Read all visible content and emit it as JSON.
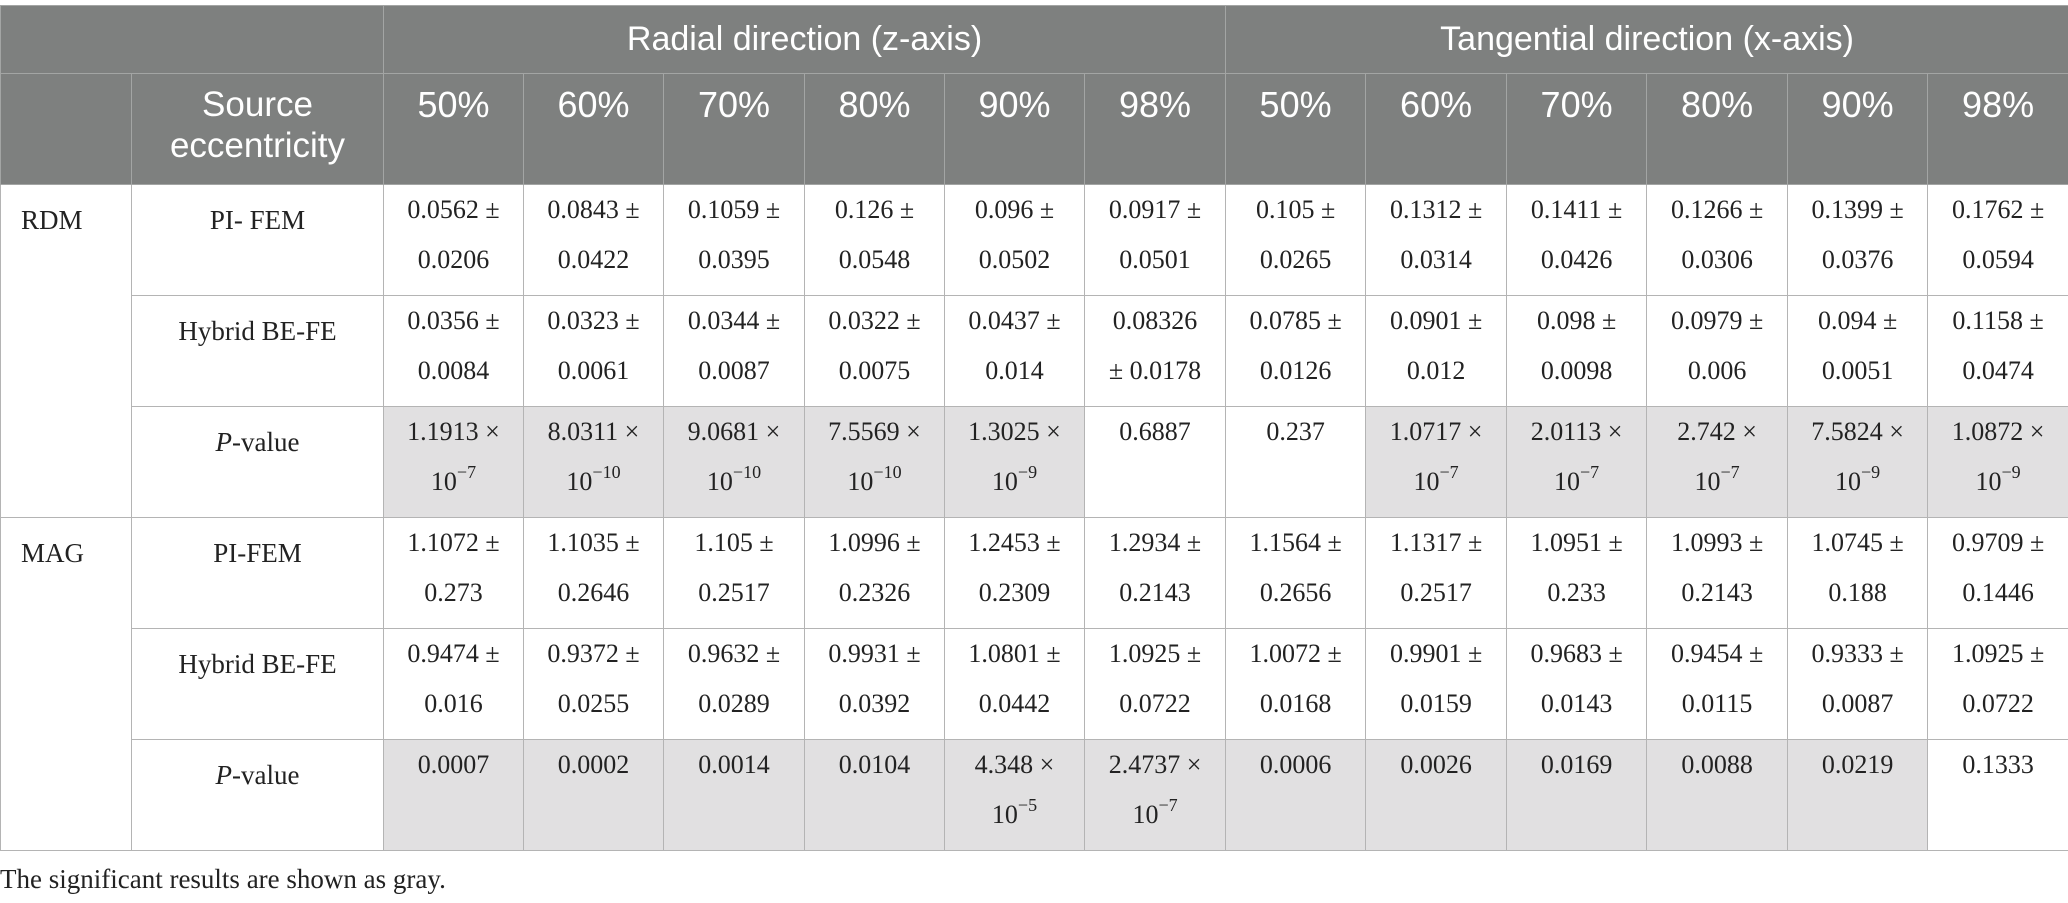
{
  "header": {
    "radial_label": "Radial direction (z-axis)",
    "tangential_label": "Tangential direction (x-axis)",
    "source_eccentricity_line1": "Source",
    "source_eccentricity_line2": "eccentricity",
    "percentages": [
      "50%",
      "60%",
      "70%",
      "80%",
      "90%",
      "98%",
      "50%",
      "60%",
      "70%",
      "80%",
      "90%",
      "98%"
    ]
  },
  "groups": [
    {
      "name": "RDM",
      "rows": [
        {
          "method": "PI- FEM",
          "italic": false,
          "cells": [
            {
              "line1": "0.0562 ±",
              "line2": "0.0206",
              "sig": false
            },
            {
              "line1": "0.0843 ±",
              "line2": "0.0422",
              "sig": false
            },
            {
              "line1": "0.1059 ±",
              "line2": "0.0395",
              "sig": false
            },
            {
              "line1": "0.126 ±",
              "line2": "0.0548",
              "sig": false
            },
            {
              "line1": "0.096 ±",
              "line2": "0.0502",
              "sig": false
            },
            {
              "line1": "0.0917 ±",
              "line2": "0.0501",
              "sig": false
            },
            {
              "line1": "0.105 ±",
              "line2": "0.0265",
              "sig": false
            },
            {
              "line1": "0.1312 ±",
              "line2": "0.0314",
              "sig": false
            },
            {
              "line1": "0.1411 ±",
              "line2": "0.0426",
              "sig": false
            },
            {
              "line1": "0.1266 ±",
              "line2": "0.0306",
              "sig": false
            },
            {
              "line1": "0.1399 ±",
              "line2": "0.0376",
              "sig": false
            },
            {
              "line1": "0.1762 ±",
              "line2": "0.0594",
              "sig": false
            }
          ]
        },
        {
          "method": "Hybrid BE-FE",
          "italic": false,
          "cells": [
            {
              "line1": "0.0356 ±",
              "line2": "0.0084",
              "sig": false
            },
            {
              "line1": "0.0323 ±",
              "line2": "0.0061",
              "sig": false
            },
            {
              "line1": "0.0344 ±",
              "line2": "0.0087",
              "sig": false
            },
            {
              "line1": "0.0322 ±",
              "line2": "0.0075",
              "sig": false
            },
            {
              "line1": "0.0437 ±",
              "line2": "0.014",
              "sig": false
            },
            {
              "line1": "0.08326",
              "line2": "± 0.0178",
              "sig": false
            },
            {
              "line1": "0.0785 ±",
              "line2": "0.0126",
              "sig": false
            },
            {
              "line1": "0.0901 ±",
              "line2": "0.012",
              "sig": false
            },
            {
              "line1": "0.098 ±",
              "line2": "0.0098",
              "sig": false
            },
            {
              "line1": "0.0979 ±",
              "line2": "0.006",
              "sig": false
            },
            {
              "line1": "0.094 ±",
              "line2": "0.0051",
              "sig": false
            },
            {
              "line1": "0.1158 ±",
              "line2": "0.0474",
              "sig": false
            }
          ]
        },
        {
          "method_italic": "P",
          "method_rest": "-value",
          "italic": true,
          "cells": [
            {
              "line1": "1.1913 ×",
              "line2": "10",
              "exp": "−7",
              "sig": true
            },
            {
              "line1": "8.0311 ×",
              "line2": "10",
              "exp": "−10",
              "sig": true
            },
            {
              "line1": "9.0681 ×",
              "line2": "10",
              "exp": "−10",
              "sig": true
            },
            {
              "line1": "7.5569 ×",
              "line2": "10",
              "exp": "−10",
              "sig": true
            },
            {
              "line1": "1.3025 ×",
              "line2": "10",
              "exp": "−9",
              "sig": true
            },
            {
              "line1": "0.6887",
              "line2": "",
              "sig": false
            },
            {
              "line1": "0.237",
              "line2": "",
              "sig": false
            },
            {
              "line1": "1.0717 ×",
              "line2": "10",
              "exp": "−7",
              "sig": true
            },
            {
              "line1": "2.0113 ×",
              "line2": "10",
              "exp": "−7",
              "sig": true
            },
            {
              "line1": "2.742 ×",
              "line2": "10",
              "exp": "−7",
              "sig": true
            },
            {
              "line1": "7.5824 ×",
              "line2": "10",
              "exp": "−9",
              "sig": true
            },
            {
              "line1": "1.0872 ×",
              "line2": "10",
              "exp": "−9",
              "sig": true
            }
          ]
        }
      ]
    },
    {
      "name": "MAG",
      "rows": [
        {
          "method": "PI-FEM",
          "italic": false,
          "cells": [
            {
              "line1": "1.1072 ±",
              "line2": "0.273",
              "sig": false
            },
            {
              "line1": "1.1035 ±",
              "line2": "0.2646",
              "sig": false
            },
            {
              "line1": "1.105 ±",
              "line2": "0.2517",
              "sig": false
            },
            {
              "line1": "1.0996 ±",
              "line2": "0.2326",
              "sig": false
            },
            {
              "line1": "1.2453 ±",
              "line2": "0.2309",
              "sig": false
            },
            {
              "line1": "1.2934 ±",
              "line2": "0.2143",
              "sig": false
            },
            {
              "line1": "1.1564 ±",
              "line2": "0.2656",
              "sig": false
            },
            {
              "line1": "1.1317 ±",
              "line2": "0.2517",
              "sig": false
            },
            {
              "line1": "1.0951 ±",
              "line2": "0.233",
              "sig": false
            },
            {
              "line1": "1.0993 ±",
              "line2": "0.2143",
              "sig": false
            },
            {
              "line1": "1.0745 ±",
              "line2": "0.188",
              "sig": false
            },
            {
              "line1": "0.9709 ±",
              "line2": "0.1446",
              "sig": false
            }
          ]
        },
        {
          "method": "Hybrid BE-FE",
          "italic": false,
          "cells": [
            {
              "line1": "0.9474 ±",
              "line2": "0.016",
              "sig": false
            },
            {
              "line1": "0.9372 ±",
              "line2": "0.0255",
              "sig": false
            },
            {
              "line1": "0.9632 ±",
              "line2": "0.0289",
              "sig": false
            },
            {
              "line1": "0.9931 ±",
              "line2": "0.0392",
              "sig": false
            },
            {
              "line1": "1.0801 ±",
              "line2": "0.0442",
              "sig": false
            },
            {
              "line1": "1.0925 ±",
              "line2": "0.0722",
              "sig": false
            },
            {
              "line1": "1.0072 ±",
              "line2": "0.0168",
              "sig": false
            },
            {
              "line1": "0.9901 ±",
              "line2": "0.0159",
              "sig": false
            },
            {
              "line1": "0.9683 ±",
              "line2": "0.0143",
              "sig": false
            },
            {
              "line1": "0.9454 ±",
              "line2": "0.0115",
              "sig": false
            },
            {
              "line1": "0.9333 ±",
              "line2": "0.0087",
              "sig": false
            },
            {
              "line1": "1.0925 ±",
              "line2": "0.0722",
              "sig": false
            }
          ]
        },
        {
          "method_italic": "P",
          "method_rest": "-value",
          "italic": true,
          "cells": [
            {
              "line1": "0.0007",
              "line2": "",
              "sig": true
            },
            {
              "line1": "0.0002",
              "line2": "",
              "sig": true
            },
            {
              "line1": "0.0014",
              "line2": "",
              "sig": true
            },
            {
              "line1": "0.0104",
              "line2": "",
              "sig": true
            },
            {
              "line1": "4.348 ×",
              "line2": "10",
              "exp": "−5",
              "sig": true
            },
            {
              "line1": "2.4737 ×",
              "line2": "10",
              "exp": "−7",
              "sig": true
            },
            {
              "line1": "0.0006",
              "line2": "",
              "sig": true
            },
            {
              "line1": "0.0026",
              "line2": "",
              "sig": true
            },
            {
              "line1": "0.0169",
              "line2": "",
              "sig": true
            },
            {
              "line1": "0.0088",
              "line2": "",
              "sig": true
            },
            {
              "line1": "0.0219",
              "line2": "",
              "sig": true
            },
            {
              "line1": "0.1333",
              "line2": "",
              "sig": false
            }
          ]
        }
      ]
    }
  ],
  "footnote": "The significant results are shown as gray.",
  "colors": {
    "header_bg": "#7e807f",
    "header_text": "#ffffff",
    "significant_bg": "#e1e0e1",
    "border": "#b4b4b4"
  }
}
